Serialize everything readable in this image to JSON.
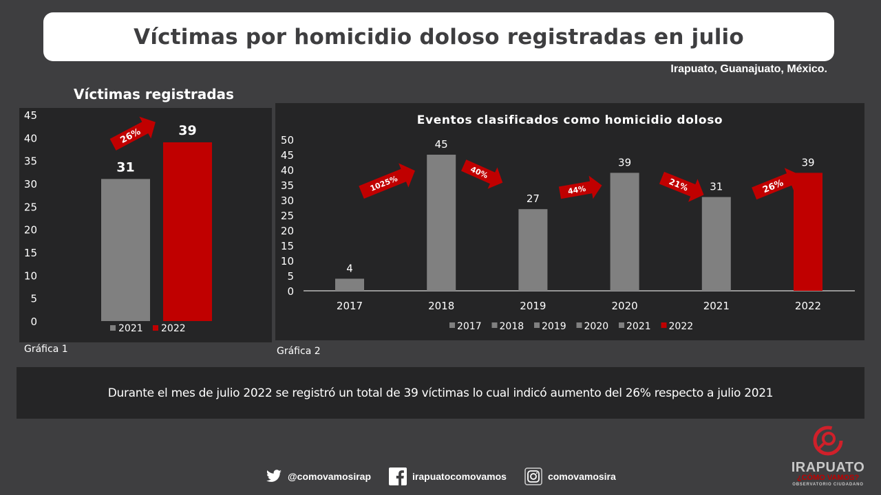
{
  "header": {
    "title": "Víctimas por homicidio doloso registradas en julio",
    "location": "Irapuato, Guanajuato, México."
  },
  "colors": {
    "gray_bar": "#808080",
    "red_bar": "#c00000",
    "panel_bg": "#252526",
    "page_bg": "#3e3e40"
  },
  "chart_data": [
    {
      "type": "bar",
      "title": "Víctimas registradas",
      "caption": "Gráfica 1",
      "categories": [
        "2021",
        "2022"
      ],
      "values": [
        31,
        39
      ],
      "value_labels": [
        "31",
        "39"
      ],
      "colors": [
        "#808080",
        "#c00000"
      ],
      "ylim": [
        0,
        45
      ],
      "yticks": [
        "0",
        "5",
        "10",
        "15",
        "20",
        "25",
        "30",
        "35",
        "40",
        "45"
      ],
      "legend": [
        "2021",
        "2022"
      ],
      "legend_position": "bottom",
      "annotations": [
        {
          "label": "26%",
          "from": "2021",
          "to": "2022",
          "direction": "up"
        }
      ],
      "grid": false
    },
    {
      "type": "bar",
      "title": "Eventos clasificados como homicidio doloso",
      "caption": "Gráfica 2",
      "categories": [
        "2017",
        "2018",
        "2019",
        "2020",
        "2021",
        "2022"
      ],
      "values": [
        4,
        45,
        27,
        39,
        31,
        39
      ],
      "value_labels": [
        "4",
        "45",
        "27",
        "39",
        "31",
        "39"
      ],
      "colors": [
        "#808080",
        "#808080",
        "#808080",
        "#808080",
        "#808080",
        "#c00000"
      ],
      "ylim": [
        0,
        50
      ],
      "yticks": [
        "0",
        "5",
        "10",
        "15",
        "20",
        "25",
        "30",
        "35",
        "40",
        "45",
        "50"
      ],
      "legend": [
        "2017",
        "2018",
        "2019",
        "2020",
        "2021",
        "2022"
      ],
      "legend_position": "bottom",
      "annotations": [
        {
          "label": "1025%",
          "from": "2017",
          "to": "2018",
          "direction": "up"
        },
        {
          "label": "40%",
          "from": "2018",
          "to": "2019",
          "direction": "down"
        },
        {
          "label": "44%",
          "from": "2019",
          "to": "2020",
          "direction": "up"
        },
        {
          "label": "21%",
          "from": "2020",
          "to": "2021",
          "direction": "down"
        },
        {
          "label": "26%",
          "from": "2021",
          "to": "2022",
          "direction": "up"
        }
      ],
      "grid": false
    }
  ],
  "summary": "Durante el mes de julio 2022 se registró un total de 39 víctimas lo cual indicó aumento del 26% respecto a julio 2021",
  "footer": {
    "twitter": {
      "icon": "twitter-icon",
      "handle": "@comovamosirap"
    },
    "facebook": {
      "icon": "facebook-icon",
      "handle": "irapuatocomovamos"
    },
    "instagram": {
      "icon": "instagram-icon",
      "handle": "comovamosira"
    }
  },
  "logo": {
    "line1": "IRAPUATO",
    "line2": "¿CÓMO VAMOS?",
    "line3": "OBSERVATORIO CIUDADANO"
  }
}
